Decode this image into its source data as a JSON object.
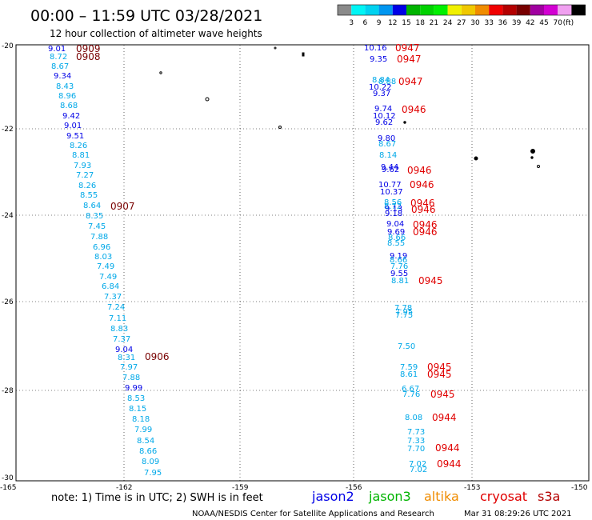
{
  "title": "00:00 – 11:59 UTC 03/28/2021",
  "subtitle": "12 hour collection of altimeter wave heights",
  "legend": {
    "colors": [
      "#8a8a8a",
      "#00f5f5",
      "#00d2f0",
      "#0096f0",
      "#0000e6",
      "#00b400",
      "#00d200",
      "#00f000",
      "#f0f000",
      "#f0c800",
      "#f08c00",
      "#f00000",
      "#b40000",
      "#780000",
      "#a000a0",
      "#d200d2",
      "#f0a0f0",
      "#000000"
    ],
    "labels": [
      "3",
      "6",
      "9",
      "12",
      "15",
      "18",
      "21",
      "24",
      "27",
      "30",
      "33",
      "36",
      "39",
      "42",
      "45",
      "70",
      "(ft)"
    ]
  },
  "axes": {
    "y_labels": [
      "-20",
      "-22",
      "-24",
      "-26",
      "-28",
      "-30"
    ],
    "x_labels": [
      "-165",
      "-162",
      "-159",
      "-156",
      "-153",
      "-150"
    ]
  },
  "track_left": {
    "values": [
      "9.01",
      "8.72",
      "8.67",
      "9.34",
      "8.43",
      "8.96",
      "8.68",
      "9.42",
      "9.01",
      "9.51",
      "8.26",
      "8.81",
      "7.93",
      "7.27",
      "8.26",
      "8.55",
      "8.64",
      "8.35",
      "7.45",
      "7.88",
      "6.96",
      "8.03",
      "7.49",
      "7.49",
      "6.84",
      "7.37",
      "7.24",
      "7.11",
      "8.83",
      "7.37",
      "9.04",
      "8.31",
      "7.97",
      "7.88",
      "9.99",
      "8.53",
      "8.15",
      "8.18",
      "7.99",
      "8.54",
      "8.66",
      "8.09",
      "7.95"
    ],
    "times": [
      "0909",
      "0908",
      "0907",
      "0906"
    ]
  },
  "track_right": {
    "values": [
      "10.16",
      "9.35",
      "8.84",
      "8.88",
      "10.22",
      "9.37",
      "9.74",
      "10.12",
      "9.62",
      "9.80",
      "8.67",
      "8.14",
      "9.44",
      "9.62",
      "10.77",
      "10.37",
      "8.56",
      "8.72",
      "9.13",
      "9.18",
      "9.04",
      "9.69",
      "8.66",
      "8.55",
      "9.19",
      "8.66",
      "7.76",
      "9.55",
      "8.81",
      "7.78",
      "7.95",
      "7.75",
      "7.50",
      "7.59",
      "8.61",
      "6.67",
      "7.76",
      "8.08",
      "7.73",
      "7.33",
      "7.70",
      "7.02",
      "7.02"
    ],
    "times": [
      "0947",
      "0947",
      "0947",
      "0946",
      "0946",
      "0946",
      "0946",
      "0946",
      "0946",
      "0946",
      "0945",
      "0945",
      "0945",
      "0945",
      "0944",
      "0944",
      "0944"
    ]
  },
  "note": "note: 1) Time is in UTC; 2) SWH is in feet",
  "satellites": [
    {
      "name": "jason2",
      "color": "#0000e6"
    },
    {
      "name": "jason3",
      "color": "#00b400"
    },
    {
      "name": "altika",
      "color": "#f08c00"
    },
    {
      "name": "cryosat",
      "color": "#e00000"
    },
    {
      "name": "s3a",
      "color": "#b40000"
    }
  ],
  "credit": "NOAA/NESDIS Center for Satellite Applications and Research",
  "timestamp": "Mar 31 08:29:26 UTC 2021"
}
